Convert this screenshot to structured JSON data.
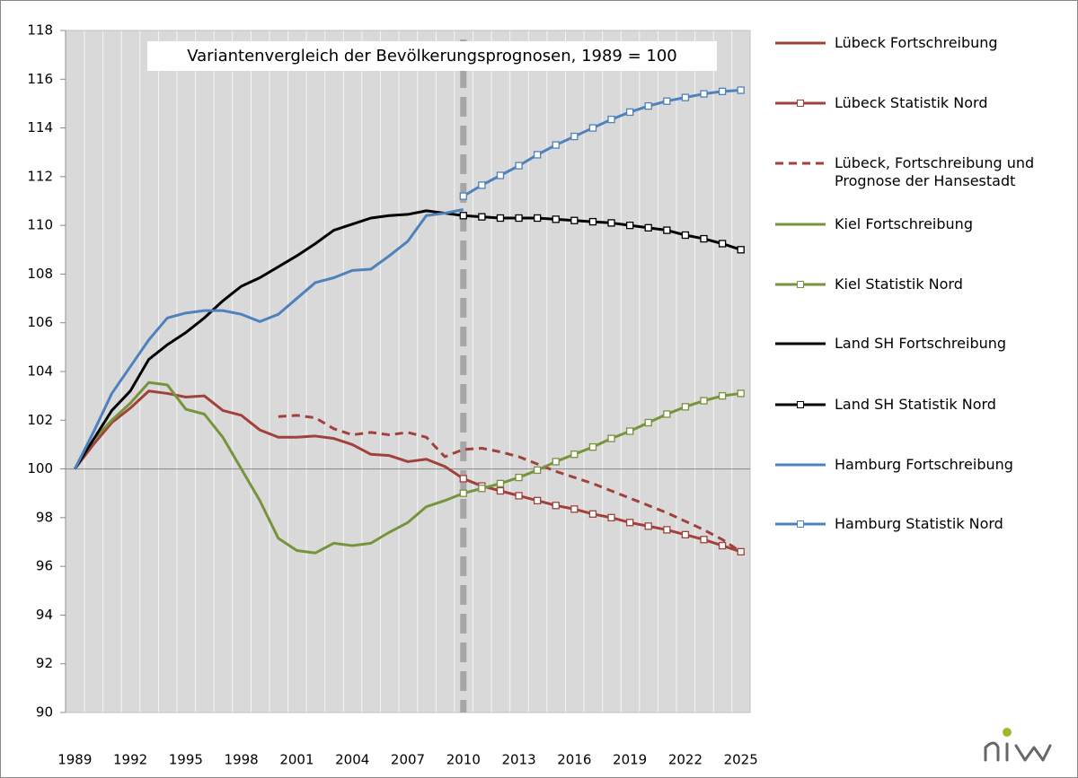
{
  "chart_data": {
    "type": "line",
    "title": "Variantenvergleich der Bevölkerungsprognosen, 1989 = 100",
    "x": [
      1989,
      1990,
      1991,
      1992,
      1993,
      1994,
      1995,
      1996,
      1997,
      1998,
      1999,
      2000,
      2001,
      2002,
      2003,
      2004,
      2005,
      2006,
      2007,
      2008,
      2009,
      2010,
      2011,
      2012,
      2013,
      2014,
      2015,
      2016,
      2017,
      2018,
      2019,
      2020,
      2021,
      2022,
      2023,
      2024,
      2025
    ],
    "xlim": [
      1988.5,
      2025.5
    ],
    "xticks": [
      1989,
      1992,
      1995,
      1998,
      2001,
      2004,
      2007,
      2010,
      2013,
      2016,
      2019,
      2022,
      2025
    ],
    "ylim": [
      90,
      118
    ],
    "yticks": [
      90,
      92,
      94,
      96,
      98,
      100,
      102,
      104,
      106,
      108,
      110,
      112,
      114,
      116,
      118
    ],
    "xaxis_at": 100,
    "reference_line_x": 2010,
    "legend": "right",
    "series": [
      {
        "name": "Lübeck Fortschreibung",
        "color": "#a0413c",
        "dash": false,
        "markers": false,
        "values": [
          100,
          101.0,
          101.9,
          102.5,
          103.2,
          103.1,
          102.95,
          103.0,
          102.4,
          102.2,
          101.6,
          101.3,
          101.3,
          101.35,
          101.25,
          101.0,
          100.6,
          100.55,
          100.3,
          100.4,
          100.1,
          99.6,
          null,
          null,
          null,
          null,
          null,
          null,
          null,
          null,
          null,
          null,
          null,
          null,
          null,
          null,
          null
        ]
      },
      {
        "name": "Lübeck Statistik Nord",
        "color": "#a0413c",
        "dash": false,
        "markers": true,
        "values": [
          null,
          null,
          null,
          null,
          null,
          null,
          null,
          null,
          null,
          null,
          null,
          null,
          null,
          null,
          null,
          null,
          null,
          null,
          null,
          null,
          null,
          99.6,
          99.3,
          99.1,
          98.9,
          98.7,
          98.5,
          98.35,
          98.15,
          98.0,
          97.8,
          97.65,
          97.5,
          97.3,
          97.1,
          96.85,
          96.6
        ]
      },
      {
        "name": "Lübeck, Fortschreibung und Prognose der Hansestadt",
        "color": "#a0413c",
        "dash": true,
        "markers": false,
        "values": [
          null,
          null,
          null,
          null,
          null,
          null,
          null,
          null,
          null,
          null,
          null,
          102.15,
          102.2,
          102.1,
          101.65,
          101.4,
          101.5,
          101.4,
          101.5,
          101.3,
          100.5,
          100.8,
          100.85,
          100.7,
          100.5,
          100.2,
          99.9,
          99.65,
          99.4,
          99.1,
          98.8,
          98.5,
          98.2,
          97.85,
          97.5,
          97.1,
          96.6
        ]
      },
      {
        "name": "Kiel Fortschreibung",
        "color": "#77933c",
        "dash": false,
        "markers": false,
        "values": [
          100,
          101.2,
          102.0,
          102.7,
          103.55,
          103.45,
          102.45,
          102.25,
          101.3,
          100.0,
          98.7,
          97.15,
          96.65,
          96.55,
          96.95,
          96.85,
          96.95,
          97.4,
          97.8,
          98.45,
          98.7,
          99.0,
          null,
          null,
          null,
          null,
          null,
          null,
          null,
          null,
          null,
          null,
          null,
          null,
          null,
          null,
          null
        ]
      },
      {
        "name": "Kiel Statistik Nord",
        "color": "#77933c",
        "dash": false,
        "markers": true,
        "values": [
          null,
          null,
          null,
          null,
          null,
          null,
          null,
          null,
          null,
          null,
          null,
          null,
          null,
          null,
          null,
          null,
          null,
          null,
          null,
          null,
          null,
          99.0,
          99.2,
          99.4,
          99.65,
          99.95,
          100.3,
          100.6,
          100.9,
          101.25,
          101.55,
          101.9,
          102.25,
          102.55,
          102.8,
          103.0,
          103.1
        ]
      },
      {
        "name": "Land SH Fortschreibung",
        "color": "#000000",
        "dash": false,
        "markers": false,
        "values": [
          100,
          101.2,
          102.4,
          103.2,
          104.5,
          105.1,
          105.6,
          106.2,
          106.9,
          107.5,
          107.85,
          108.3,
          108.75,
          109.25,
          109.8,
          110.05,
          110.3,
          110.4,
          110.45,
          110.6,
          110.5,
          110.4,
          null,
          null,
          null,
          null,
          null,
          null,
          null,
          null,
          null,
          null,
          null,
          null,
          null,
          null,
          null
        ]
      },
      {
        "name": "Land SH Statistik Nord",
        "color": "#000000",
        "dash": false,
        "markers": true,
        "values": [
          null,
          null,
          null,
          null,
          null,
          null,
          null,
          null,
          null,
          null,
          null,
          null,
          null,
          null,
          null,
          null,
          null,
          null,
          null,
          null,
          null,
          110.4,
          110.35,
          110.3,
          110.3,
          110.3,
          110.25,
          110.2,
          110.15,
          110.1,
          110.0,
          109.9,
          109.8,
          109.6,
          109.45,
          109.25,
          109.0
        ]
      },
      {
        "name": "Hamburg Fortschreibung",
        "color": "#4f81bd",
        "dash": false,
        "markers": false,
        "values": [
          100,
          101.5,
          103.1,
          104.2,
          105.3,
          106.2,
          106.4,
          106.5,
          106.5,
          106.35,
          106.05,
          106.35,
          107.0,
          107.65,
          107.85,
          108.15,
          108.2,
          108.75,
          109.35,
          110.4,
          110.5,
          110.65,
          null,
          null,
          null,
          null,
          null,
          null,
          null,
          null,
          null,
          null,
          null,
          null,
          null,
          null,
          null
        ]
      },
      {
        "name": "Hamburg Statistik Nord",
        "color": "#4f81bd",
        "dash": false,
        "markers": true,
        "values": [
          null,
          null,
          null,
          null,
          null,
          null,
          null,
          null,
          null,
          null,
          null,
          null,
          null,
          null,
          null,
          null,
          null,
          null,
          null,
          null,
          null,
          111.2,
          111.65,
          112.05,
          112.45,
          112.9,
          113.3,
          113.65,
          114.0,
          114.35,
          114.65,
          114.9,
          115.1,
          115.25,
          115.4,
          115.5,
          115.55
        ]
      }
    ]
  }
}
